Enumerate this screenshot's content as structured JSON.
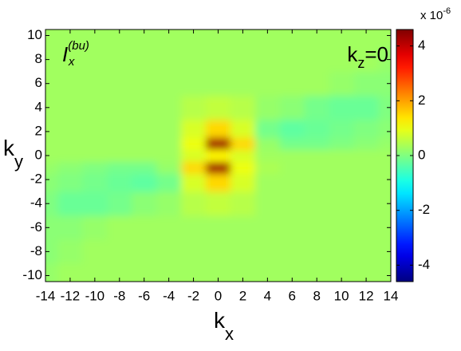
{
  "chart_data": {
    "type": "heatmap",
    "title": {
      "base": "I",
      "sub": "x",
      "sup": "(bu)"
    },
    "annotation": {
      "base": "k",
      "sub": "z",
      "rest": "=0"
    },
    "x_label": {
      "base": "k",
      "sub": "x"
    },
    "y_label": {
      "base": "k",
      "sub": "y"
    },
    "colorbar_label": {
      "base": "x 10",
      "exponent": "-6"
    },
    "colormap": "jet",
    "x": [
      -14,
      -12,
      -10,
      -8,
      -6,
      -4,
      -2,
      0,
      2,
      4,
      6,
      8,
      10,
      12,
      14
    ],
    "y": [
      -10,
      -8,
      -6,
      -4,
      -2,
      -1,
      0,
      1,
      2,
      4,
      6,
      8,
      10
    ],
    "z": [
      [
        0.2,
        0.3,
        0.3,
        0.3,
        0.3,
        0.3,
        0.3,
        0.3,
        0.3,
        0.3,
        0.3,
        0.3,
        0.3,
        0.3,
        0.3
      ],
      [
        0.1,
        0.2,
        0.3,
        0.3,
        0.3,
        0.3,
        0.3,
        0.3,
        0.3,
        0.3,
        0.3,
        0.3,
        0.3,
        0.3,
        0.3
      ],
      [
        0.1,
        0.1,
        0.2,
        0.3,
        0.3,
        0.3,
        0.3,
        0.3,
        0.3,
        0.3,
        0.3,
        0.3,
        0.3,
        0.3,
        0.3
      ],
      [
        0.0,
        -0.2,
        -0.2,
        -0.1,
        0.1,
        0.2,
        0.5,
        0.6,
        0.5,
        0.3,
        0.3,
        0.3,
        0.3,
        0.3,
        0.3
      ],
      [
        0.1,
        0.0,
        -0.1,
        -0.2,
        -0.3,
        -0.1,
        0.8,
        1.5,
        0.8,
        0.3,
        0.3,
        0.3,
        0.3,
        0.3,
        0.3
      ],
      [
        0.2,
        0.1,
        0.0,
        -0.1,
        -0.1,
        0.2,
        1.5,
        4.3,
        1.0,
        0.4,
        0.3,
        0.3,
        0.3,
        0.3,
        0.3
      ],
      [
        0.3,
        0.3,
        0.3,
        0.3,
        0.3,
        0.3,
        0.8,
        1.2,
        0.8,
        0.3,
        0.3,
        0.3,
        0.3,
        0.3,
        0.3
      ],
      [
        0.3,
        0.3,
        0.3,
        0.3,
        0.3,
        0.3,
        1.0,
        4.3,
        1.5,
        0.2,
        -0.1,
        -0.1,
        0.0,
        0.1,
        0.2
      ],
      [
        0.3,
        0.3,
        0.3,
        0.3,
        0.3,
        0.3,
        0.8,
        1.5,
        0.8,
        -0.1,
        -0.3,
        -0.2,
        -0.1,
        0.0,
        0.1
      ],
      [
        0.3,
        0.3,
        0.3,
        0.3,
        0.3,
        0.3,
        0.5,
        0.6,
        0.5,
        0.2,
        0.1,
        -0.1,
        -0.2,
        -0.2,
        0.0
      ],
      [
        0.3,
        0.3,
        0.3,
        0.3,
        0.3,
        0.3,
        0.3,
        0.3,
        0.3,
        0.3,
        0.3,
        0.3,
        0.2,
        0.1,
        0.1
      ],
      [
        0.3,
        0.3,
        0.3,
        0.3,
        0.3,
        0.3,
        0.3,
        0.3,
        0.3,
        0.3,
        0.3,
        0.3,
        0.3,
        0.3,
        0.2
      ],
      [
        0.3,
        0.3,
        0.3,
        0.3,
        0.3,
        0.3,
        0.3,
        0.3,
        0.3,
        0.3,
        0.3,
        0.3,
        0.3,
        0.3,
        0.3
      ]
    ],
    "xlim": [
      -14,
      14
    ],
    "ylim": [
      -10.5,
      10.5
    ],
    "xticks": [
      -14,
      -12,
      -10,
      -8,
      -6,
      -4,
      -2,
      0,
      2,
      4,
      6,
      8,
      10,
      12,
      14
    ],
    "yticks": [
      -10,
      -8,
      -6,
      -4,
      -2,
      0,
      2,
      4,
      6,
      8,
      10
    ],
    "clim": [
      -4.6,
      4.6
    ],
    "cticks": [
      -4,
      -2,
      0,
      2,
      4
    ]
  }
}
